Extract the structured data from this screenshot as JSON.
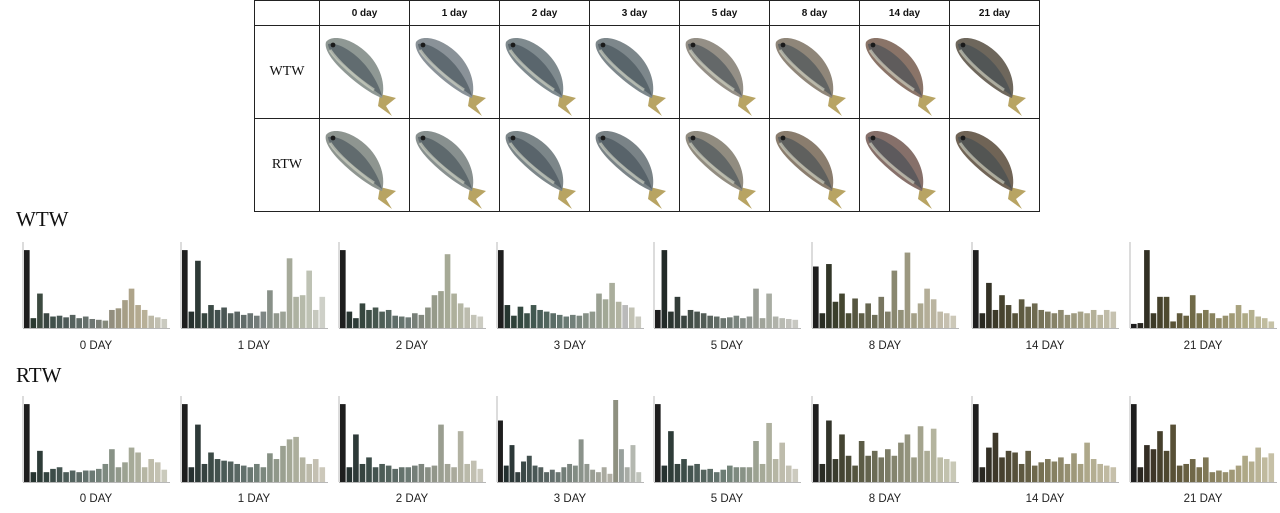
{
  "table": {
    "days": [
      "0 day",
      "1 day",
      "2 day",
      "3 day",
      "5 day",
      "8 day",
      "14 day",
      "21 day"
    ],
    "rows": [
      {
        "label": "WTW",
        "fish_body": [
          "#8f9894",
          "#8a9298",
          "#7f8a8e",
          "#7d878b",
          "#948f86",
          "#8f8679",
          "#8a7468",
          "#6e675c"
        ]
      },
      {
        "label": "RTW",
        "fish_body": [
          "#8e9590",
          "#88908f",
          "#7c8689",
          "#7a8387",
          "#918c80",
          "#8a7d6e",
          "#86706a",
          "#706456"
        ]
      }
    ]
  },
  "sections": [
    {
      "title": "WTW",
      "charts": [
        {
          "caption": "0 DAY",
          "values": [
            95,
            12,
            42,
            18,
            14,
            15,
            13,
            16,
            12,
            14,
            11,
            10,
            9,
            22,
            24,
            34,
            48,
            28,
            22,
            15,
            13,
            11
          ],
          "colors": [
            "#1e1e1e",
            "#2a3a30",
            "#3c4a40",
            "#3a4642",
            "#40504a",
            "#485854",
            "#4e5a58",
            "#56625e",
            "#5e6a66",
            "#66706c",
            "#6e7672",
            "#7a7e76",
            "#868a7c",
            "#928e7e",
            "#9c9680",
            "#a69e86",
            "#aea48a",
            "#b4aa90",
            "#b8b098",
            "#bcb8a6",
            "#c2c0b2",
            "#cacac0"
          ]
        },
        {
          "caption": "1 DAY",
          "values": [
            95,
            20,
            82,
            18,
            28,
            22,
            25,
            18,
            20,
            16,
            18,
            15,
            20,
            46,
            18,
            20,
            85,
            38,
            40,
            70,
            22,
            38
          ],
          "colors": [
            "#1e1e1e",
            "#26302e",
            "#2e3a36",
            "#36443e",
            "#3c4a46",
            "#42504e",
            "#4a5654",
            "#525e5a",
            "#5a6462",
            "#626c6a",
            "#6a7472",
            "#747c7a",
            "#7e8684",
            "#889088",
            "#92988e",
            "#9ca296",
            "#a6aa9a",
            "#aeb2a2",
            "#b6baaa",
            "#bec2b4",
            "#c6c8be",
            "#ced0c8"
          ]
        },
        {
          "caption": "2 DAY",
          "values": [
            95,
            20,
            12,
            30,
            22,
            25,
            20,
            22,
            15,
            14,
            13,
            18,
            16,
            25,
            40,
            45,
            90,
            42,
            30,
            25,
            16,
            14
          ],
          "colors": [
            "#1e1e1e",
            "#283430",
            "#2e3c38",
            "#36463e",
            "#3e4e46",
            "#46564e",
            "#4e5e56",
            "#566660",
            "#5e6c68",
            "#66746e",
            "#6e7a76",
            "#787f78",
            "#82887e",
            "#8c9284",
            "#969a8a",
            "#9ea290",
            "#a6aa96",
            "#aeb09c",
            "#b4b6a4",
            "#bcbcae",
            "#c4c4b8",
            "#ccccc2"
          ]
        },
        {
          "caption": "3 DAY",
          "values": [
            95,
            28,
            15,
            26,
            18,
            28,
            22,
            20,
            18,
            16,
            14,
            16,
            15,
            18,
            20,
            42,
            35,
            55,
            32,
            28,
            25,
            14
          ],
          "colors": [
            "#1e1e1e",
            "#263630",
            "#2e4038",
            "#344840",
            "#3c5048",
            "#425850",
            "#4a5e58",
            "#52665e",
            "#5a6c66",
            "#62746e",
            "#6a7a74",
            "#72807a",
            "#7c8880",
            "#869086",
            "#90988c",
            "#9aa092",
            "#a2a896",
            "#aaae9c",
            "#b2b4a2",
            "#bababa",
            "#c2c2b4",
            "#cacac0"
          ]
        },
        {
          "caption": "5 DAY",
          "values": [
            22,
            95,
            20,
            38,
            15,
            22,
            20,
            18,
            15,
            14,
            12,
            13,
            15,
            12,
            14,
            48,
            12,
            42,
            14,
            12,
            11,
            10
          ],
          "colors": [
            "#1e1e1e",
            "#222a28",
            "#2a3430",
            "#323c38",
            "#3a4440",
            "#424c46",
            "#4a544e",
            "#525c56",
            "#5a645e",
            "#626c66",
            "#6a746e",
            "#727c76",
            "#7a847e",
            "#848c86",
            "#8e948e",
            "#989c94",
            "#a0a49a",
            "#a8aca2",
            "#b0b2aa",
            "#b8bab2",
            "#c0c0ba",
            "#c8c8c2"
          ]
        },
        {
          "caption": "8 DAY",
          "values": [
            75,
            18,
            78,
            32,
            42,
            18,
            36,
            18,
            30,
            16,
            38,
            20,
            70,
            22,
            92,
            18,
            30,
            48,
            35,
            20,
            18,
            15
          ],
          "colors": [
            "#1e1e1e",
            "#2a2e24",
            "#323628",
            "#3a3e2c",
            "#444630",
            "#4c4e36",
            "#565640",
            "#5e5e48",
            "#666650",
            "#6e6e58",
            "#787660",
            "#807e68",
            "#8a8870",
            "#929078",
            "#9c9880",
            "#a4a088",
            "#aca890",
            "#b4ae98",
            "#bab4a0",
            "#c0baa8",
            "#c6c0b0",
            "#ccc8b8"
          ]
        },
        {
          "caption": "14 DAY",
          "values": [
            95,
            18,
            55,
            22,
            40,
            28,
            18,
            35,
            26,
            30,
            22,
            20,
            18,
            22,
            16,
            18,
            20,
            18,
            22,
            16,
            22,
            20
          ],
          "colors": [
            "#1e1e1e",
            "#2a2a22",
            "#343226",
            "#3c3a2a",
            "#46422e",
            "#4e4a34",
            "#56523a",
            "#5e5a40",
            "#666248",
            "#6e6a50",
            "#767258",
            "#7e7a60",
            "#868268",
            "#8e8a70",
            "#969278",
            "#9e9a80",
            "#a6a288",
            "#aeaa90",
            "#b4b098",
            "#bab6a0",
            "#c0bca8",
            "#c6c2b0"
          ]
        },
        {
          "caption": "21 DAY",
          "values": [
            5,
            6,
            95,
            18,
            38,
            38,
            8,
            18,
            15,
            40,
            18,
            22,
            18,
            12,
            15,
            18,
            28,
            18,
            22,
            14,
            12,
            8
          ],
          "colors": [
            "#1e1e1e",
            "#282620",
            "#323024",
            "#3c3a28",
            "#46422c",
            "#4e4a30",
            "#585236",
            "#605a3c",
            "#686242",
            "#706a48",
            "#78724e",
            "#807a56",
            "#88825e",
            "#908a66",
            "#98926e",
            "#a09a76",
            "#a8a27e",
            "#aeaa86",
            "#b4b08e",
            "#bab696",
            "#c0bc9e",
            "#c6c2a6"
          ]
        }
      ]
    },
    {
      "title": "RTW",
      "charts": [
        {
          "caption": "0 DAY",
          "values": [
            95,
            12,
            38,
            12,
            16,
            18,
            12,
            14,
            12,
            14,
            14,
            16,
            22,
            40,
            18,
            24,
            42,
            36,
            18,
            28,
            24,
            15
          ],
          "colors": [
            "#1e1e1e",
            "#263430",
            "#2e3c38",
            "#344440",
            "#3c4c48",
            "#445450",
            "#4c5c58",
            "#546460",
            "#5c6a66",
            "#64726e",
            "#6c7a74",
            "#74827a",
            "#7e8a80",
            "#889286",
            "#929a8c",
            "#9ca292",
            "#a6aa98",
            "#aeb09e",
            "#b6b6a4",
            "#bebcaa",
            "#c4c2b2",
            "#cacabc"
          ]
        },
        {
          "caption": "1 DAY",
          "values": [
            95,
            18,
            70,
            22,
            36,
            28,
            26,
            25,
            22,
            20,
            18,
            22,
            18,
            35,
            28,
            44,
            52,
            55,
            30,
            22,
            28,
            18
          ],
          "colors": [
            "#1e1e1e",
            "#263030",
            "#2e3a38",
            "#364240",
            "#3c4a46",
            "#44524e",
            "#4a5a56",
            "#52605c",
            "#5a6864",
            "#62706c",
            "#6a7872",
            "#728078",
            "#7c887e",
            "#869084",
            "#90988a",
            "#9aa090",
            "#a4a896",
            "#acae9c",
            "#b4b4a2",
            "#bcbaaa",
            "#c4c0b2",
            "#ccc8ba"
          ]
        },
        {
          "caption": "2 DAY",
          "values": [
            95,
            18,
            58,
            22,
            30,
            18,
            22,
            20,
            16,
            18,
            18,
            20,
            22,
            18,
            20,
            70,
            22,
            18,
            62,
            22,
            26,
            16
          ],
          "colors": [
            "#1e1e1e",
            "#263230",
            "#2e3a38",
            "#364440",
            "#3c4c48",
            "#445450",
            "#4c5c56",
            "#54645e",
            "#5c6a66",
            "#64726c",
            "#6c7a74",
            "#747e78",
            "#7e867e",
            "#888e84",
            "#92968a",
            "#9a9e90",
            "#a2a496",
            "#aaaa9c",
            "#b2b2a2",
            "#babaaa",
            "#c2c0b2",
            "#cac8bc"
          ]
        },
        {
          "caption": "3 DAY",
          "values": [
            75,
            20,
            45,
            12,
            25,
            32,
            20,
            18,
            12,
            15,
            12,
            18,
            22,
            20,
            52,
            22,
            15,
            12,
            18,
            10,
            100,
            40,
            18,
            45,
            12
          ],
          "colors": [
            "#1e1e1e",
            "#243030",
            "#2c3838",
            "#344040",
            "#3a4846",
            "#42504e",
            "#4a5856",
            "#525e5c",
            "#5a6664",
            "#626e6c",
            "#6a7672",
            "#727e78",
            "#7a847e",
            "#828c84",
            "#8a928a",
            "#929890",
            "#9a9e94",
            "#a2a49a",
            "#aaaaa0",
            "#b2b0a6",
            "#8e9080",
            "#98a09c",
            "#a8aca6",
            "#b4b8b0",
            "#c0c4bc"
          ]
        },
        {
          "caption": "5 DAY",
          "values": [
            95,
            20,
            62,
            22,
            28,
            20,
            22,
            15,
            16,
            12,
            15,
            20,
            18,
            18,
            18,
            50,
            22,
            72,
            28,
            48,
            20,
            16
          ],
          "colors": [
            "#1e1e1e",
            "#263230",
            "#2e3c38",
            "#364440",
            "#3c4c48",
            "#445450",
            "#4c5c58",
            "#54645e",
            "#5c6c66",
            "#64746e",
            "#6c7c74",
            "#74847a",
            "#7e8a80",
            "#889286",
            "#929a8c",
            "#9ca292",
            "#a6aa98",
            "#aeb09e",
            "#b6b6a4",
            "#bebcac",
            "#c4c2b4",
            "#cccabe"
          ]
        },
        {
          "caption": "8 DAY",
          "values": [
            95,
            22,
            75,
            28,
            58,
            32,
            20,
            50,
            32,
            38,
            30,
            40,
            32,
            48,
            58,
            30,
            68,
            38,
            65,
            30,
            28,
            25
          ],
          "colors": [
            "#1e1e1e",
            "#2a2c24",
            "#32342a",
            "#3a3c2e",
            "#444432",
            "#4c4c38",
            "#54543e",
            "#5c5c46",
            "#64644e",
            "#6c6c56",
            "#74745e",
            "#7c7c66",
            "#84846e",
            "#8c8c76",
            "#94947e",
            "#9c9c86",
            "#a4a48e",
            "#acac96",
            "#b4b49e",
            "#bcbca6",
            "#c2c2ae",
            "#c8c8b6"
          ]
        },
        {
          "caption": "14 DAY",
          "values": [
            95,
            18,
            42,
            60,
            30,
            38,
            36,
            22,
            38,
            20,
            24,
            28,
            25,
            30,
            22,
            35,
            22,
            48,
            28,
            22,
            20,
            18
          ],
          "colors": [
            "#1e1e1e",
            "#2a2822",
            "#343026",
            "#3e382a",
            "#46402e",
            "#4e4834",
            "#56503a",
            "#5e5840",
            "#666046",
            "#6e684c",
            "#767052",
            "#7e785a",
            "#868062",
            "#8e886a",
            "#969072",
            "#9e987a",
            "#a6a082",
            "#aea88a",
            "#b4ae92",
            "#bab49a",
            "#c0baa2",
            "#c6c0aa"
          ]
        },
        {
          "caption": "21 DAY",
          "values": [
            95,
            18,
            45,
            40,
            62,
            38,
            70,
            20,
            22,
            28,
            18,
            30,
            12,
            14,
            12,
            15,
            20,
            32,
            25,
            42,
            30,
            35
          ],
          "colors": [
            "#1e1e1e",
            "#2a2620",
            "#342e24",
            "#3e3628",
            "#46402c",
            "#4e4830",
            "#585036",
            "#60583c",
            "#686042",
            "#706848",
            "#78704e",
            "#807856",
            "#88805e",
            "#908866",
            "#98906e",
            "#a09876",
            "#a8a07e",
            "#aea886",
            "#b4ae8e",
            "#bab496",
            "#c0ba9e",
            "#c6c0a6"
          ]
        }
      ]
    }
  ]
}
